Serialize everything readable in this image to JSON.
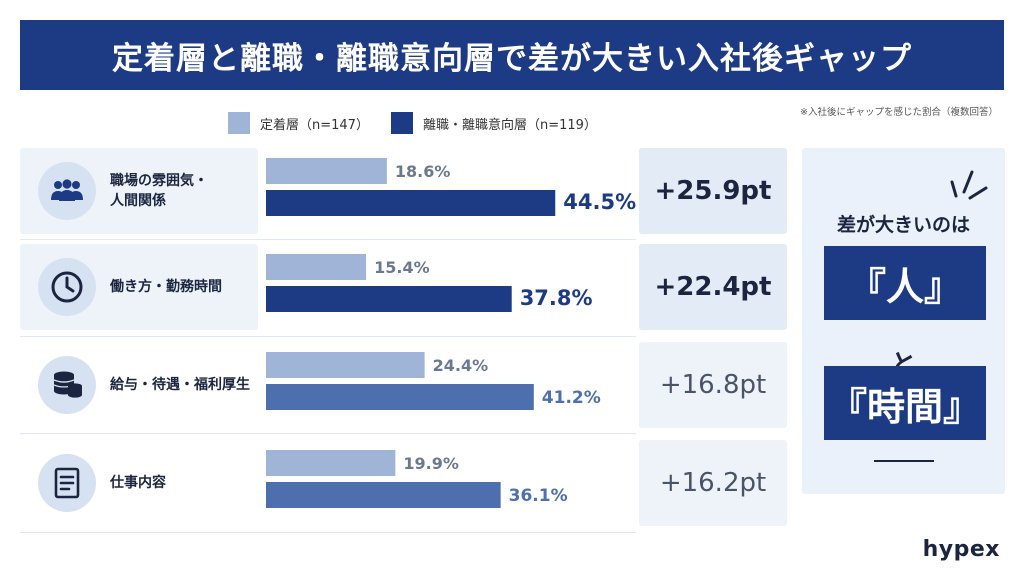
{
  "title": "定着層と離職・離職意向層で差が大きい入社後ギャップ",
  "note": "※入社後にギャップを感じた割合（複数回答）",
  "colors": {
    "retained": "#9fb4d6",
    "leaving": "#1d3a85",
    "leaving_muted": "#4d6fae",
    "panel": "#eef3fa"
  },
  "chart_data": {
    "type": "bar",
    "orientation": "horizontal",
    "unit": "%",
    "xlim": [
      0,
      50
    ],
    "categories": [
      "職場の雰囲気・\n人間関係",
      "働き方・勤務時間",
      "給与・待遇・福利厚生",
      "仕事内容"
    ],
    "category_icons": [
      "people-icon",
      "clock-icon",
      "coins-icon",
      "document-icon"
    ],
    "series": [
      {
        "name": "定着層（n=147）",
        "values": [
          18.6,
          15.4,
          24.4,
          19.9
        ],
        "labels": [
          "18.6%",
          "15.4%",
          "24.4%",
          "19.9%"
        ]
      },
      {
        "name": "離職・離職意向層（n=119）",
        "values": [
          44.5,
          37.8,
          41.2,
          36.1
        ],
        "labels": [
          "44.5%",
          "37.8%",
          "41.2%",
          "36.1%"
        ]
      }
    ],
    "differences": [
      "+25.9pt",
      "+22.4pt",
      "+16.8pt",
      "+16.2pt"
    ],
    "highlighted_rows": [
      true,
      true,
      false,
      false
    ]
  },
  "side_panel": {
    "title": "差が大きいのは",
    "item1": "『人』",
    "connector": "と",
    "item2": "『時間』"
  },
  "logo": "hypex"
}
